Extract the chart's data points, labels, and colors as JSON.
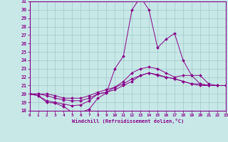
{
  "xlabel": "Windchill (Refroidissement éolien,°C)",
  "bg_color": "#c8e8e8",
  "line_color": "#880088",
  "grid_color": "#a0c8c8",
  "xmin": 0,
  "xmax": 23,
  "ymin": 18,
  "ymax": 31,
  "lines": [
    {
      "x": [
        0,
        1,
        2,
        3,
        4,
        5,
        6,
        7,
        8,
        9,
        10,
        11,
        12,
        13,
        14,
        15,
        16,
        17,
        18,
        19,
        20,
        21,
        22,
        23
      ],
      "y": [
        20.0,
        19.8,
        19.0,
        18.9,
        18.5,
        17.8,
        17.8,
        18.2,
        19.5,
        20.1,
        23.0,
        24.5,
        30.0,
        31.5,
        30.0,
        25.5,
        26.5,
        27.2,
        24.0,
        22.2,
        21.2,
        21.0,
        21.0,
        21.0
      ]
    },
    {
      "x": [
        0,
        1,
        2,
        3,
        4,
        5,
        6,
        7,
        8,
        9,
        10,
        11,
        12,
        13,
        14,
        15,
        16,
        17,
        18,
        19,
        20,
        21,
        22,
        23
      ],
      "y": [
        20.0,
        19.8,
        19.2,
        19.0,
        18.8,
        18.6,
        18.7,
        19.2,
        20.0,
        20.2,
        20.8,
        21.5,
        22.5,
        23.0,
        23.2,
        23.0,
        22.5,
        22.0,
        22.2,
        22.2,
        22.2,
        21.2,
        21.0,
        21.0
      ]
    },
    {
      "x": [
        0,
        1,
        2,
        3,
        4,
        5,
        6,
        7,
        8,
        9,
        10,
        11,
        12,
        13,
        14,
        15,
        16,
        17,
        18,
        19,
        20,
        21,
        22,
        23
      ],
      "y": [
        20.0,
        20.0,
        19.8,
        19.5,
        19.3,
        19.2,
        19.2,
        19.5,
        20.0,
        20.2,
        20.5,
        21.0,
        21.5,
        22.2,
        22.5,
        22.3,
        22.0,
        21.8,
        21.5,
        21.2,
        21.2,
        21.0,
        21.0,
        21.0
      ]
    },
    {
      "x": [
        0,
        1,
        2,
        3,
        4,
        5,
        6,
        7,
        8,
        9,
        10,
        11,
        12,
        13,
        14,
        15,
        16,
        17,
        18,
        19,
        20,
        21,
        22,
        23
      ],
      "y": [
        20.0,
        20.0,
        20.0,
        19.8,
        19.5,
        19.5,
        19.5,
        19.8,
        20.2,
        20.5,
        20.8,
        21.2,
        21.8,
        22.2,
        22.5,
        22.2,
        22.0,
        21.8,
        21.5,
        21.2,
        21.0,
        21.0,
        21.0,
        21.0
      ]
    }
  ]
}
